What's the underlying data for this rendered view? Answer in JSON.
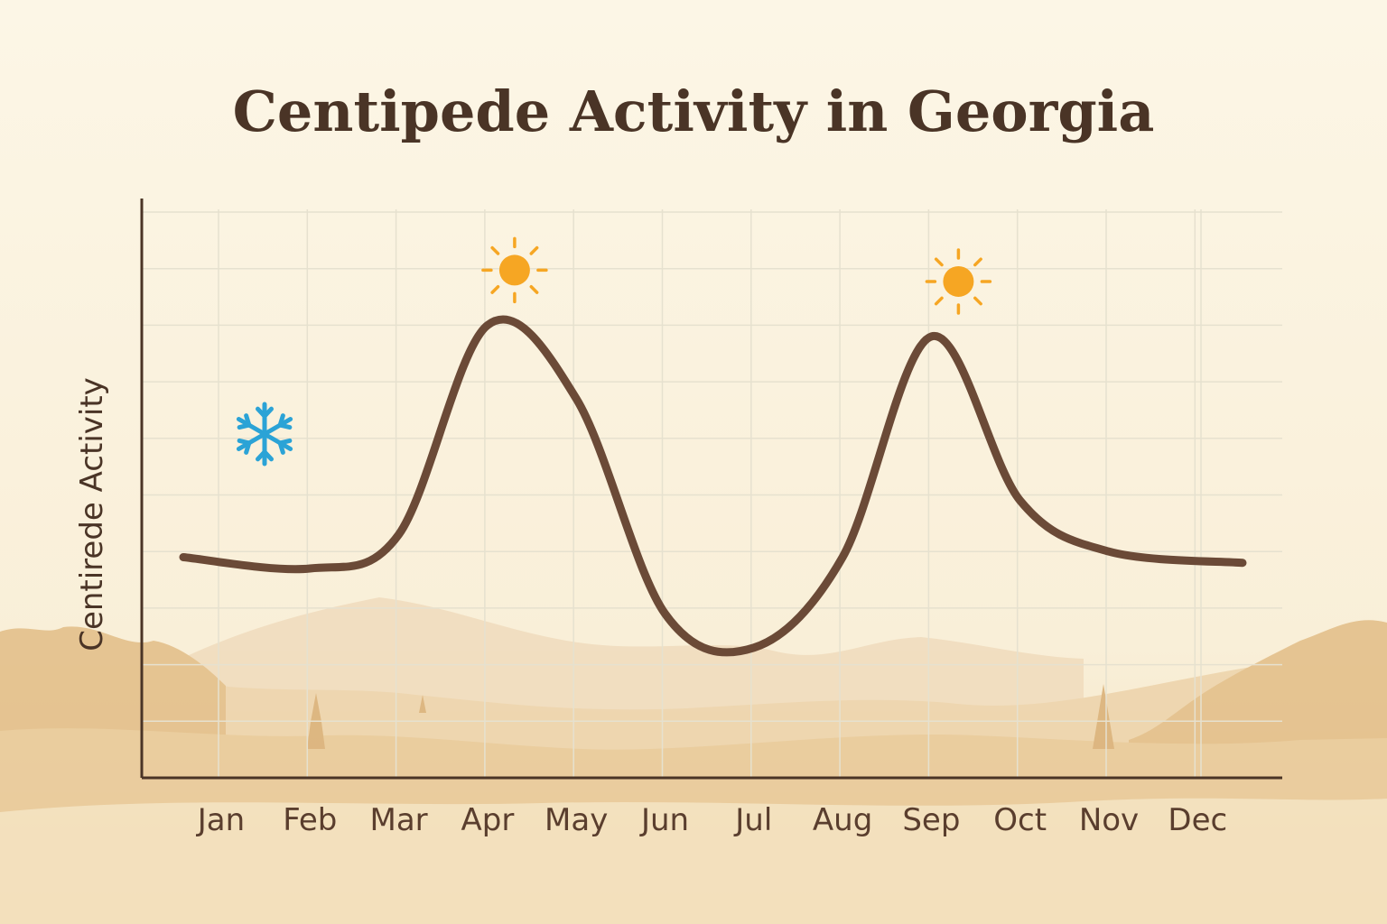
{
  "chart_data": {
    "type": "line",
    "title": "Centipede Activity in Georgia",
    "xlabel": "",
    "ylabel": "Centirede Activity",
    "categories": [
      "Jan",
      "Feb",
      "Mar",
      "Apr",
      "May",
      "Jun",
      "Jul",
      "Aug",
      "Sep",
      "Oct",
      "Nov",
      "Dec"
    ],
    "series": [
      {
        "values": [
          3.9,
          3.7,
          4.3,
          8.0,
          6.7,
          2.9,
          2.3,
          3.9,
          7.8,
          4.9,
          4.0,
          3.8
        ]
      }
    ],
    "ylim": [
      0,
      10
    ],
    "grid": true,
    "legend": "none",
    "annotations": [
      {
        "icon": "snowflake-icon",
        "month": "Jan"
      },
      {
        "icon": "sun-icon",
        "month": "Apr"
      },
      {
        "icon": "sun-icon",
        "month": "Sep"
      }
    ],
    "colors": {
      "line": "#6b4a37",
      "axis": "#4a3426",
      "snowflake": "#2ba3d6",
      "sun": "#f6a623",
      "background": "#fbf4e1",
      "landscape": "#e6c08a"
    }
  }
}
